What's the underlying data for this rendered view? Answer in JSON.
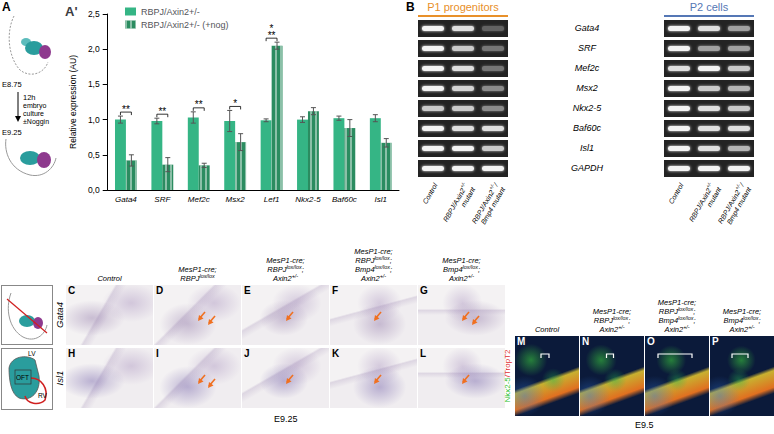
{
  "chart_data": {
    "type": "bar",
    "title": "A'",
    "categories": [
      "Gata4",
      "SRF",
      "Mef2c",
      "Msx2",
      "Lef1",
      "Nkx2-5",
      "Baf60c",
      "Isl1"
    ],
    "series": [
      {
        "name": "RBPJ/Axin2+/-",
        "color": "#35b585",
        "values": [
          1.0,
          0.98,
          1.03,
          0.98,
          0.99,
          1.0,
          1.02,
          1.02
        ],
        "errors": [
          0.05,
          0.04,
          0.08,
          0.15,
          0.02,
          0.04,
          0.03,
          0.05
        ]
      },
      {
        "name": "RBPJ/Axin2+/- (+nog)",
        "color": "#2b8c60",
        "values": [
          0.42,
          0.36,
          0.35,
          0.68,
          2.05,
          1.12,
          0.88,
          0.67
        ],
        "errors": [
          0.08,
          0.1,
          0.03,
          0.12,
          0.05,
          0.05,
          0.12,
          0.06
        ]
      }
    ],
    "ylabel": "Relative expression (AU)",
    "ylim": [
      0,
      2.5
    ],
    "yticks": [
      {
        "value": 0,
        "label": "0,0"
      },
      {
        "value": 0.5,
        "label": "0,5"
      },
      {
        "value": 1,
        "label": "1,0"
      },
      {
        "value": 1.5,
        "label": "1,5"
      },
      {
        "value": 2,
        "label": "2,0"
      },
      {
        "value": 2.5,
        "label": "2,5"
      }
    ],
    "significance": [
      {
        "category": "Gata4",
        "labels": [
          "**"
        ]
      },
      {
        "category": "SRF",
        "labels": [
          "**"
        ]
      },
      {
        "category": "Mef2c",
        "labels": [
          "**"
        ]
      },
      {
        "category": "Msx2",
        "labels": [
          "*"
        ]
      },
      {
        "category": "Lef1",
        "labels": [
          "*",
          "**"
        ]
      }
    ],
    "grid": false,
    "legend": "upper left"
  },
  "figure": {
    "panel_A": {
      "label": "A",
      "start": "E8.75",
      "time": "12h",
      "treatment": [
        "embryo",
        "culture",
        "±Noggin"
      ],
      "end": "E9.25"
    },
    "panel_B": {
      "label": "B",
      "gels": [
        {
          "title": "P1 progenitors",
          "color": "#e8902a",
          "bands": [
            [
              1,
              0.9,
              0.3
            ],
            [
              1,
              0.8,
              0.4
            ],
            [
              1,
              0.9,
              0.4
            ],
            [
              1,
              0.85,
              0.5
            ],
            [
              0.8,
              0.8,
              0.5
            ],
            [
              1,
              0.9,
              0.9
            ],
            [
              1,
              1,
              0.8
            ],
            [
              1,
              1,
              1
            ]
          ]
        },
        {
          "title": "P2 cells",
          "color": "#5577b5",
          "bands": [
            [
              1,
              0.9,
              0.6
            ],
            [
              1,
              0.6,
              0.6
            ],
            [
              0.9,
              1,
              0.8
            ],
            [
              1,
              0.8,
              0.7
            ],
            [
              1,
              0.9,
              0.8
            ],
            [
              1,
              0.9,
              0.9
            ],
            [
              1,
              0.9,
              0.7
            ],
            [
              1,
              1,
              1
            ]
          ]
        }
      ],
      "genes": [
        "Gata4",
        "SRF",
        "Mef2c",
        "Msx2",
        "Nkx2-5",
        "Baf60c",
        "Isl1",
        "GAPDH"
      ],
      "lanes": [
        [
          [
            {
              "t": "Control"
            }
          ]
        ],
        [
          [
            {
              "t": "RBPJ/Axin2"
            },
            {
              "sup": "+/-"
            }
          ],
          [
            {
              "t": "mutant"
            }
          ]
        ],
        [
          [
            {
              "t": "RBPJ/Axin2"
            },
            {
              "sup": "+/-"
            },
            {
              "t": "/"
            }
          ],
          [
            {
              "t": "Bmp4 mutant"
            }
          ]
        ]
      ]
    },
    "schematic": {
      "labels": [
        "LV",
        "OFT",
        "RV"
      ]
    },
    "panels_C_L": {
      "columns": [
        [
          [
            {
              "t": "Control"
            }
          ]
        ],
        [
          [
            {
              "t": "MesP1-cre;"
            }
          ],
          [
            {
              "t": "RBPJ"
            },
            {
              "sup": "lox/lox"
            }
          ]
        ],
        [
          [
            {
              "t": "MesP1-cre;"
            }
          ],
          [
            {
              "t": "RBPJ"
            },
            {
              "sup": "lox/lox"
            },
            {
              "t": ";"
            }
          ],
          [
            {
              "t": "Axin2"
            },
            {
              "sup": "+/-"
            }
          ]
        ],
        [
          [
            {
              "t": "MesP1-cre;"
            }
          ],
          [
            {
              "t": "RBPJ"
            },
            {
              "sup": "lox/lox"
            },
            {
              "t": ";"
            }
          ],
          [
            {
              "t": "Bmp4"
            },
            {
              "sup": "lox/lox"
            },
            {
              "t": ";"
            }
          ],
          [
            {
              "t": "Axin2"
            },
            {
              "sup": "+/-"
            }
          ]
        ],
        [
          [
            {
              "t": "MesP1-cre;"
            }
          ],
          [
            {
              "t": "Bmp4"
            },
            {
              "sup": "lox/lox"
            },
            {
              "t": ";"
            }
          ],
          [
            {
              "t": "Axin2"
            },
            {
              "sup": "+/-"
            }
          ]
        ]
      ],
      "rows": [
        {
          "gene": "Gata4",
          "labels": [
            "C",
            "D",
            "E",
            "F",
            "G"
          ]
        },
        {
          "gene": "Isl1",
          "labels": [
            "H",
            "I",
            "J",
            "K",
            "L"
          ]
        }
      ],
      "stage": "E9.25"
    },
    "panels_M_P": {
      "columns": [
        [
          [
            {
              "t": "Control"
            }
          ]
        ],
        [
          [
            {
              "t": "MesP1-cre;"
            }
          ],
          [
            {
              "t": "RBPJ"
            },
            {
              "sup": "lox/lox"
            },
            {
              "t": ";"
            }
          ],
          [
            {
              "t": "Axin2"
            },
            {
              "sup": "+/-"
            }
          ]
        ],
        [
          [
            {
              "t": "MesP1-cre;"
            }
          ],
          [
            {
              "t": "RBPJ"
            },
            {
              "sup": "lox/lox"
            },
            {
              "t": ";"
            }
          ],
          [
            {
              "t": "Bmp4"
            },
            {
              "sup": "lox/lox"
            },
            {
              "t": ";"
            }
          ],
          [
            {
              "t": "Axin2"
            },
            {
              "sup": "+/-"
            }
          ]
        ],
        [
          [
            {
              "t": "MesP1-cre;"
            }
          ],
          [
            {
              "t": "Bmp4"
            },
            {
              "sup": "lox/lox"
            },
            {
              "t": ";"
            }
          ],
          [
            {
              "t": "Axin2"
            },
            {
              "sup": "+/-"
            }
          ]
        ]
      ],
      "labels": [
        "M",
        "N",
        "O",
        "P"
      ],
      "stain": [
        {
          "t": "Nkx2-5",
          "color": "#2fbf2f"
        },
        {
          "t": "/TropT2",
          "color": "#e03030"
        }
      ],
      "stage": "E9.5"
    }
  }
}
